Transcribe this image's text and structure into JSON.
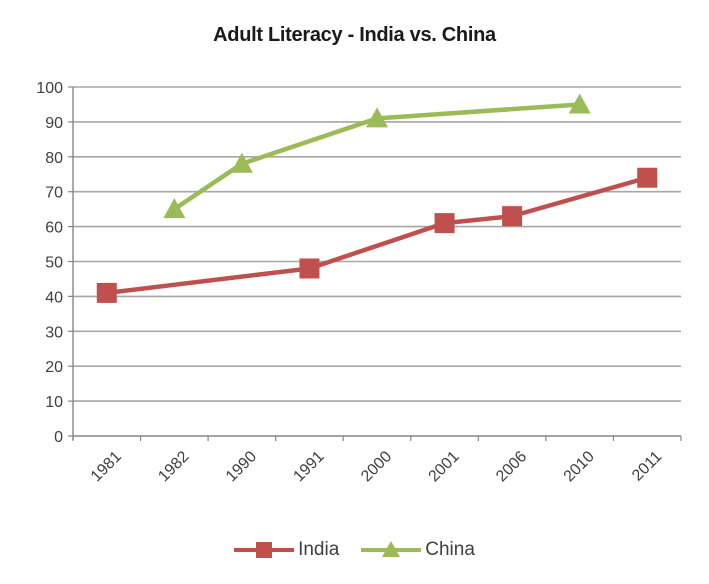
{
  "chart_data": {
    "type": "line",
    "title": "Adult Literacy - India vs. China",
    "xlabel": "",
    "ylabel": "",
    "categories": [
      "1981",
      "1982",
      "1990",
      "1991",
      "2000",
      "2001",
      "2006",
      "2010",
      "2011"
    ],
    "series": [
      {
        "name": "India",
        "color": "#C0504D",
        "marker": "square",
        "values": [
          41,
          null,
          null,
          48,
          null,
          61,
          63,
          null,
          74
        ]
      },
      {
        "name": "China",
        "color": "#9BBB59",
        "marker": "triangle",
        "values": [
          null,
          65,
          78,
          null,
          91,
          null,
          null,
          95,
          null
        ]
      }
    ],
    "ylim": [
      0,
      100
    ],
    "yticks": [
      0,
      10,
      20,
      30,
      40,
      50,
      60,
      70,
      80,
      90,
      100
    ],
    "grid": true,
    "legend_position": "bottom",
    "xtick_rotation": -45
  },
  "colors": {
    "gridline": "#A6A6A6",
    "axis": "#868686",
    "text": "#404040"
  }
}
